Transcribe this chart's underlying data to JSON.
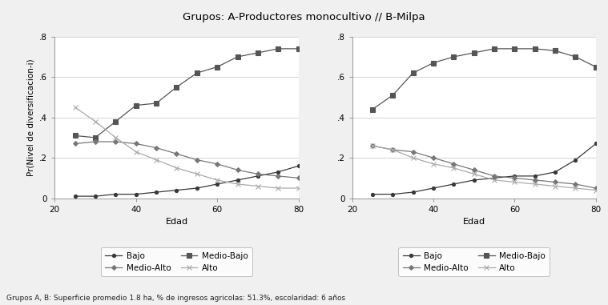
{
  "title": "Grupos: A-Productores monocultivo // B-Milpa",
  "footnote": "Grupos A, B: Superficie promedio 1.8 ha, % de ingresos agricolas: 51.3%, escolaridad: 6 años",
  "xlabel": "Edad",
  "ylabel": "Pr(Nivel de diversificacion-i)",
  "xlim": [
    20,
    80
  ],
  "ylim": [
    0,
    0.8
  ],
  "yticks": [
    0,
    0.2,
    0.4,
    0.6,
    0.8
  ],
  "ytick_labels": [
    "0",
    ".2",
    ".4",
    ".6",
    ".8"
  ],
  "xticks": [
    20,
    40,
    60,
    80
  ],
  "x": [
    25,
    30,
    35,
    40,
    45,
    50,
    55,
    60,
    65,
    70,
    75,
    80
  ],
  "legend_labels": [
    "Bajo",
    "Medio-Bajo",
    "Medio-Alto",
    "Alto"
  ],
  "background_color": "#f0f0f0",
  "plot_background": "#ffffff",
  "A_Bajo": [
    0.01,
    0.01,
    0.02,
    0.02,
    0.03,
    0.04,
    0.05,
    0.07,
    0.09,
    0.11,
    0.13,
    0.16
  ],
  "A_MedioBajo": [
    0.31,
    0.3,
    0.38,
    0.46,
    0.47,
    0.55,
    0.62,
    0.65,
    0.7,
    0.72,
    0.74,
    0.74
  ],
  "A_MedioAlto": [
    0.27,
    0.28,
    0.28,
    0.27,
    0.25,
    0.22,
    0.19,
    0.17,
    0.14,
    0.12,
    0.11,
    0.1
  ],
  "A_Alto": [
    0.45,
    0.38,
    0.3,
    0.23,
    0.19,
    0.15,
    0.12,
    0.09,
    0.07,
    0.06,
    0.05,
    0.05
  ],
  "B_Bajo": [
    0.02,
    0.02,
    0.03,
    0.05,
    0.07,
    0.09,
    0.1,
    0.11,
    0.11,
    0.13,
    0.19,
    0.27
  ],
  "B_MedioBajo": [
    0.44,
    0.51,
    0.62,
    0.67,
    0.7,
    0.72,
    0.74,
    0.74,
    0.74,
    0.73,
    0.7,
    0.65
  ],
  "B_MedioAlto": [
    0.26,
    0.24,
    0.23,
    0.2,
    0.17,
    0.14,
    0.11,
    0.1,
    0.09,
    0.08,
    0.07,
    0.05
  ],
  "B_Alto": [
    0.26,
    0.24,
    0.2,
    0.17,
    0.15,
    0.12,
    0.09,
    0.08,
    0.07,
    0.06,
    0.05,
    0.04
  ],
  "colors": [
    "#3a3a3a",
    "#555555",
    "#777777",
    "#aaaaaa"
  ],
  "markers": [
    "o",
    "s",
    "D",
    "x"
  ],
  "markersizes": [
    3,
    4,
    3,
    4
  ],
  "linewidth": 0.9
}
